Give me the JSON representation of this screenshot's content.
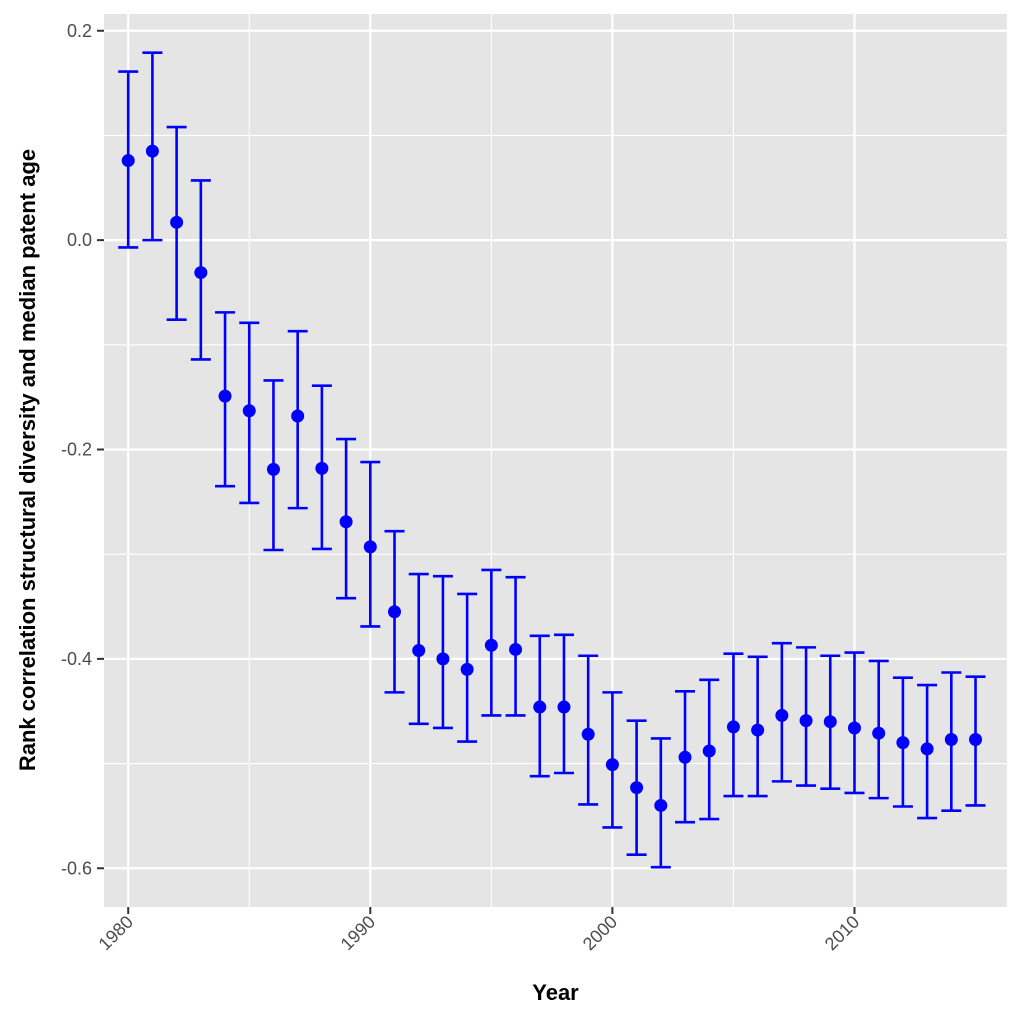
{
  "chart_data": {
    "type": "scatter",
    "title": "",
    "xlabel": "Year",
    "ylabel": "Rank correlation structural diversity and median patent age",
    "xlim": [
      1979,
      2016.3
    ],
    "ylim": [
      -0.637,
      0.216
    ],
    "x_ticks": [
      1980,
      1990,
      2000,
      2010
    ],
    "x_tick_labels": [
      "1980",
      "1990",
      "2000",
      "2010"
    ],
    "y_ticks": [
      0.2,
      0.0,
      -0.2,
      -0.4,
      -0.6
    ],
    "y_tick_labels": [
      "0.2",
      "0.0",
      "-0.2",
      "-0.4",
      "-0.6"
    ],
    "grid": true,
    "colors": {
      "series": "#0000ff",
      "panel_background": "#e5e5e5",
      "grid": "#ffffff"
    },
    "series": [
      {
        "marker": "point-with-errorbar",
        "points": [
          {
            "x": 1980,
            "y": 0.076,
            "lower": -0.007,
            "upper": 0.161
          },
          {
            "x": 1981,
            "y": 0.085,
            "lower": 0.0,
            "upper": 0.179
          },
          {
            "x": 1982,
            "y": 0.017,
            "lower": -0.076,
            "upper": 0.108
          },
          {
            "x": 1983,
            "y": -0.031,
            "lower": -0.114,
            "upper": 0.057
          },
          {
            "x": 1984,
            "y": -0.149,
            "lower": -0.235,
            "upper": -0.069
          },
          {
            "x": 1985,
            "y": -0.163,
            "lower": -0.251,
            "upper": -0.079
          },
          {
            "x": 1986,
            "y": -0.219,
            "lower": -0.296,
            "upper": -0.134
          },
          {
            "x": 1987,
            "y": -0.168,
            "lower": -0.256,
            "upper": -0.087
          },
          {
            "x": 1988,
            "y": -0.218,
            "lower": -0.295,
            "upper": -0.139
          },
          {
            "x": 1989,
            "y": -0.269,
            "lower": -0.342,
            "upper": -0.19
          },
          {
            "x": 1990,
            "y": -0.293,
            "lower": -0.369,
            "upper": -0.212
          },
          {
            "x": 1991,
            "y": -0.355,
            "lower": -0.432,
            "upper": -0.278
          },
          {
            "x": 1992,
            "y": -0.392,
            "lower": -0.462,
            "upper": -0.319
          },
          {
            "x": 1993,
            "y": -0.4,
            "lower": -0.466,
            "upper": -0.321
          },
          {
            "x": 1994,
            "y": -0.41,
            "lower": -0.479,
            "upper": -0.338
          },
          {
            "x": 1995,
            "y": -0.387,
            "lower": -0.454,
            "upper": -0.315
          },
          {
            "x": 1996,
            "y": -0.391,
            "lower": -0.454,
            "upper": -0.322
          },
          {
            "x": 1997,
            "y": -0.446,
            "lower": -0.512,
            "upper": -0.378
          },
          {
            "x": 1998,
            "y": -0.446,
            "lower": -0.509,
            "upper": -0.377
          },
          {
            "x": 1999,
            "y": -0.472,
            "lower": -0.539,
            "upper": -0.397
          },
          {
            "x": 2000,
            "y": -0.501,
            "lower": -0.561,
            "upper": -0.432
          },
          {
            "x": 2001,
            "y": -0.523,
            "lower": -0.587,
            "upper": -0.459
          },
          {
            "x": 2002,
            "y": -0.54,
            "lower": -0.599,
            "upper": -0.476
          },
          {
            "x": 2003,
            "y": -0.494,
            "lower": -0.556,
            "upper": -0.431
          },
          {
            "x": 2004,
            "y": -0.488,
            "lower": -0.553,
            "upper": -0.42
          },
          {
            "x": 2005,
            "y": -0.465,
            "lower": -0.531,
            "upper": -0.395
          },
          {
            "x": 2006,
            "y": -0.468,
            "lower": -0.531,
            "upper": -0.398
          },
          {
            "x": 2007,
            "y": -0.454,
            "lower": -0.517,
            "upper": -0.385
          },
          {
            "x": 2008,
            "y": -0.459,
            "lower": -0.521,
            "upper": -0.389
          },
          {
            "x": 2009,
            "y": -0.46,
            "lower": -0.524,
            "upper": -0.397
          },
          {
            "x": 2010,
            "y": -0.466,
            "lower": -0.528,
            "upper": -0.394
          },
          {
            "x": 2011,
            "y": -0.471,
            "lower": -0.533,
            "upper": -0.402
          },
          {
            "x": 2012,
            "y": -0.48,
            "lower": -0.541,
            "upper": -0.418
          },
          {
            "x": 2013,
            "y": -0.486,
            "lower": -0.552,
            "upper": -0.425
          },
          {
            "x": 2014,
            "y": -0.477,
            "lower": -0.545,
            "upper": -0.413
          },
          {
            "x": 2015,
            "y": -0.477,
            "lower": -0.54,
            "upper": -0.417
          }
        ]
      }
    ]
  }
}
